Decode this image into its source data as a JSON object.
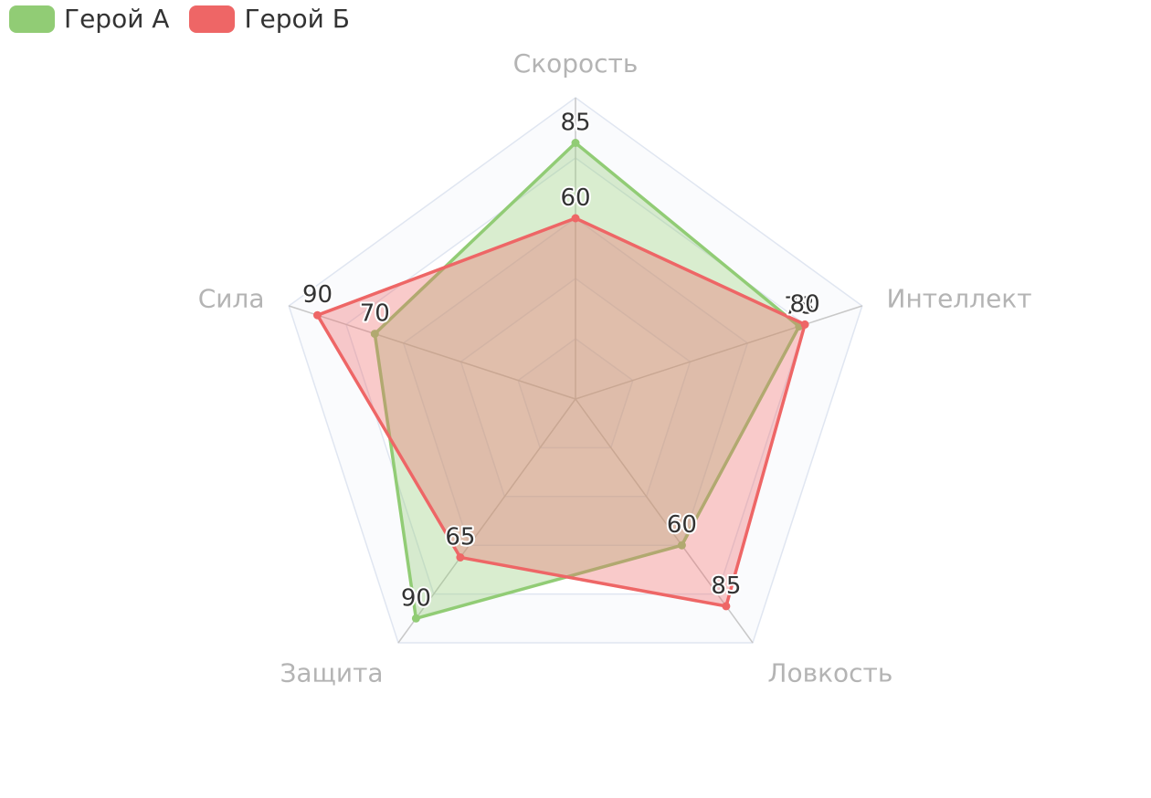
{
  "chart_data": {
    "type": "radar",
    "title": "",
    "indicators": [
      "Скорость",
      "Интеллект",
      "Ловкость",
      "Защита",
      "Сила"
    ],
    "max": 100,
    "split_levels": 5,
    "legend_position": "top-left",
    "series": [
      {
        "name": "Герой А",
        "color": "#91cc75",
        "values": [
          85,
          78,
          60,
          90,
          70
        ]
      },
      {
        "name": "Герой Б",
        "color": "#ee6666",
        "values": [
          60,
          80,
          85,
          65,
          90
        ]
      }
    ]
  }
}
